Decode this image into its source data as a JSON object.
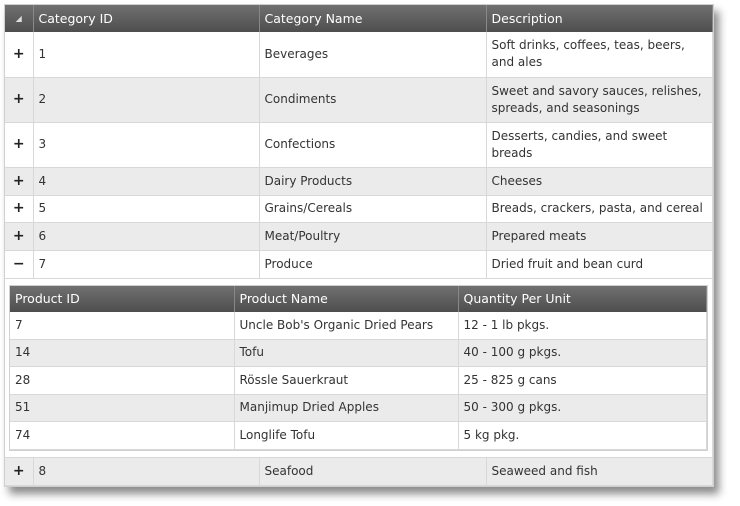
{
  "columns": {
    "sort_icon": "sort-ascending-icon",
    "id": "Category ID",
    "name": "Category Name",
    "desc": "Description"
  },
  "rows": [
    {
      "exp": "+",
      "id": "1",
      "name": "Beverages",
      "desc": "Soft drinks, coffees, teas, beers, and ales"
    },
    {
      "exp": "+",
      "id": "2",
      "name": "Condiments",
      "desc": "Sweet and savory sauces, relishes, spreads, and seasonings"
    },
    {
      "exp": "+",
      "id": "3",
      "name": "Confections",
      "desc": "Desserts, candies, and sweet breads"
    },
    {
      "exp": "+",
      "id": "4",
      "name": "Dairy Products",
      "desc": "Cheeses"
    },
    {
      "exp": "+",
      "id": "5",
      "name": "Grains/Cereals",
      "desc": "Breads, crackers, pasta, and cereal"
    },
    {
      "exp": "+",
      "id": "6",
      "name": "Meat/Poultry",
      "desc": "Prepared meats"
    },
    {
      "exp": "−",
      "id": "7",
      "name": "Produce",
      "desc": "Dried fruit and bean curd"
    },
    {
      "exp": "+",
      "id": "8",
      "name": "Seafood",
      "desc": "Seaweed and fish"
    }
  ],
  "detail": {
    "columns": {
      "id": "Product ID",
      "name": "Product Name",
      "qty": "Quantity Per Unit"
    },
    "rows": [
      {
        "id": "7",
        "name": "Uncle Bob's Organic Dried Pears",
        "qty": "12 - 1 lb pkgs."
      },
      {
        "id": "14",
        "name": "Tofu",
        "qty": "40 - 100 g pkgs."
      },
      {
        "id": "28",
        "name": "Rössle Sauerkraut",
        "qty": "25 - 825 g cans"
      },
      {
        "id": "51",
        "name": "Manjimup Dried Apples",
        "qty": "50 - 300 g pkgs."
      },
      {
        "id": "74",
        "name": "Longlife Tofu",
        "qty": "5 kg pkg."
      }
    ]
  }
}
